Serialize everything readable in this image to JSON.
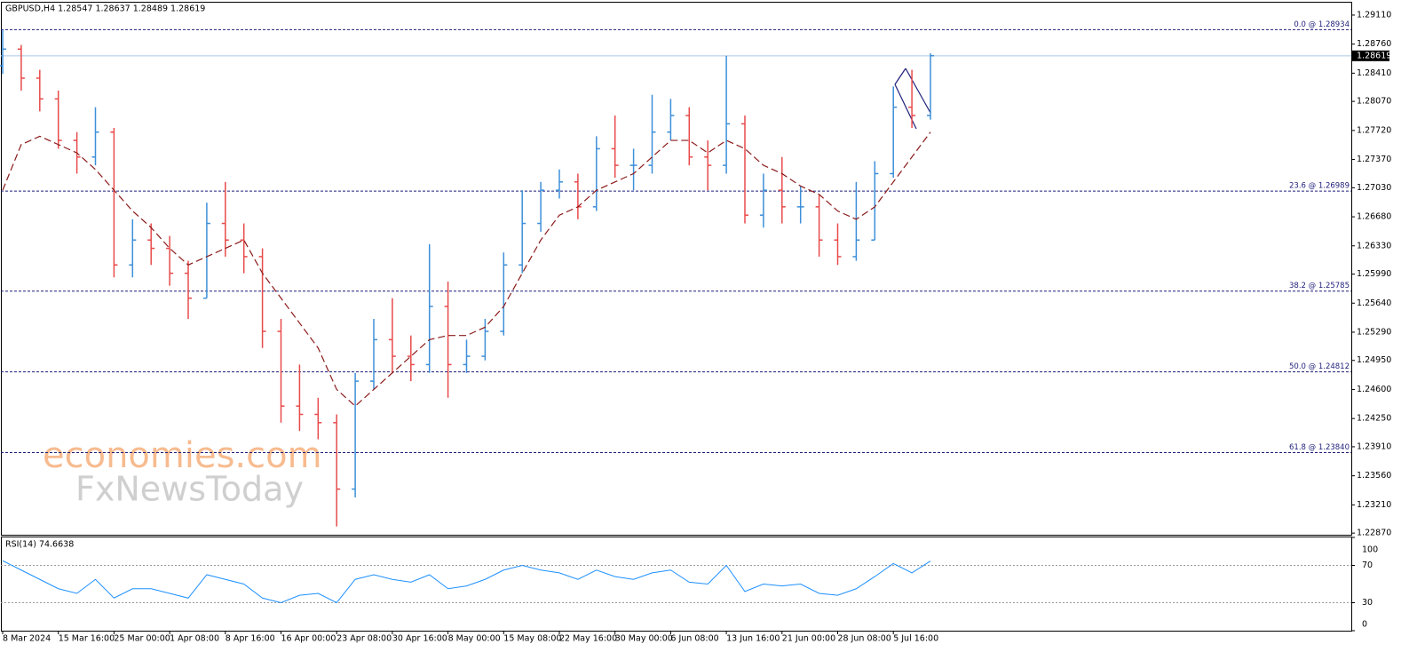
{
  "chart_data": [
    {
      "type": "ohlc",
      "title": "GBPUSD,H4  1.28547 1.28637 1.28489 1.28619",
      "categories": [
        "8 Mar 2024",
        null,
        null,
        "15 Mar 16:00",
        null,
        null,
        "25 Mar 00:00",
        null,
        null,
        "1 Apr 08:00",
        null,
        null,
        "8 Apr 16:00",
        null,
        null,
        "16 Apr 00:00",
        null,
        null,
        "23 Apr 08:00",
        null,
        null,
        "30 Apr 16:00",
        null,
        null,
        "8 May 00:00",
        null,
        null,
        "15 May 08:00",
        null,
        null,
        "22 May 16:00",
        null,
        null,
        "30 May 00:00",
        null,
        null,
        "6 Jun 08:00",
        null,
        null,
        "13 Jun 16:00",
        null,
        null,
        "21 Jun 00:00",
        null,
        null,
        "28 Jun 08:00",
        null,
        null,
        "5 Jul 16:00",
        null,
        null
      ],
      "open": [
        1.285,
        1.287,
        1.2835,
        1.281,
        1.276,
        1.274,
        1.277,
        1.261,
        1.264,
        1.263,
        1.26,
        1.257,
        1.266,
        1.264,
        1.262,
        1.253,
        1.244,
        1.243,
        1.242,
        1.234,
        1.247,
        1.252,
        1.25,
        1.249,
        1.256,
        1.249,
        1.25,
        1.253,
        1.261,
        1.266,
        1.27,
        1.271,
        1.268,
        1.275,
        1.273,
        1.273,
        1.277,
        1.279,
        1.274,
        1.273,
        1.278,
        1.267,
        1.27,
        1.268,
        1.268,
        1.264,
        1.262,
        1.264,
        1.272,
        1.28,
        1.279
      ],
      "high": [
        1.2893,
        1.2875,
        1.2845,
        1.282,
        1.277,
        1.28,
        1.2775,
        1.2665,
        1.266,
        1.2645,
        1.2615,
        1.2685,
        1.271,
        1.266,
        1.263,
        1.2545,
        1.249,
        1.245,
        1.243,
        1.248,
        1.2545,
        1.257,
        1.2525,
        1.2635,
        1.259,
        1.252,
        1.2545,
        1.2625,
        1.27,
        1.271,
        1.2725,
        1.272,
        1.2765,
        1.279,
        1.275,
        1.2815,
        1.281,
        1.28,
        1.276,
        1.2862,
        1.279,
        1.272,
        1.274,
        1.2705,
        1.2695,
        1.266,
        1.271,
        1.2735,
        1.2825,
        1.2845,
        1.2865
      ],
      "low": [
        1.284,
        1.282,
        1.2795,
        1.275,
        1.272,
        1.273,
        1.2595,
        1.2595,
        1.261,
        1.2585,
        1.2545,
        1.257,
        1.262,
        1.26,
        1.251,
        1.242,
        1.241,
        1.24,
        1.2295,
        1.233,
        1.246,
        1.248,
        1.247,
        1.248,
        1.245,
        1.248,
        1.2495,
        1.2525,
        1.26,
        1.265,
        1.269,
        1.2665,
        1.2675,
        1.2715,
        1.27,
        1.272,
        1.276,
        1.273,
        1.27,
        1.272,
        1.266,
        1.2655,
        1.266,
        1.266,
        1.262,
        1.261,
        1.2615,
        1.264,
        1.2715,
        1.2775,
        1.2785
      ],
      "close": [
        1.287,
        1.2835,
        1.281,
        1.276,
        1.274,
        1.277,
        1.261,
        1.264,
        1.263,
        1.26,
        1.257,
        1.266,
        1.264,
        1.262,
        1.253,
        1.244,
        1.243,
        1.242,
        1.234,
        1.247,
        1.252,
        1.25,
        1.249,
        1.256,
        1.249,
        1.25,
        1.253,
        1.261,
        1.266,
        1.27,
        1.271,
        1.268,
        1.275,
        1.273,
        1.273,
        1.277,
        1.279,
        1.274,
        1.273,
        1.278,
        1.267,
        1.27,
        1.268,
        1.268,
        1.264,
        1.262,
        1.264,
        1.272,
        1.28,
        1.279,
        1.2862
      ],
      "up_color": "#3d8fd8",
      "down_color": "#e84a4a",
      "moving_average": {
        "color": "#8b1a1a",
        "values": [
          1.27,
          1.2755,
          1.2765,
          1.2755,
          1.2745,
          1.2725,
          1.27,
          1.2675,
          1.2655,
          1.263,
          1.261,
          1.262,
          1.263,
          1.264,
          1.26,
          1.257,
          1.254,
          1.251,
          1.246,
          1.244,
          1.246,
          1.248,
          1.25,
          1.252,
          1.2525,
          1.2525,
          1.2535,
          1.256,
          1.26,
          1.264,
          1.267,
          1.268,
          1.27,
          1.271,
          1.272,
          1.274,
          1.276,
          1.276,
          1.2745,
          1.276,
          1.275,
          1.273,
          1.272,
          1.2705,
          1.2695,
          1.2675,
          1.2665,
          1.268,
          1.271,
          1.274,
          1.277
        ]
      },
      "ylim": [
        1.2285,
        1.2927
      ],
      "yticks": [
        {
          "value": 1.2911,
          "label": "1.29110"
        },
        {
          "value": 1.2876,
          "label": "1.28760"
        },
        {
          "value": 1.2841,
          "label": "1.28410"
        },
        {
          "value": 1.2807,
          "label": "1.28070"
        },
        {
          "value": 1.2772,
          "label": "1.27720"
        },
        {
          "value": 1.2737,
          "label": "1.27370"
        },
        {
          "value": 1.2703,
          "label": "1.27030"
        },
        {
          "value": 1.2668,
          "label": "1.26680"
        },
        {
          "value": 1.2633,
          "label": "1.26330"
        },
        {
          "value": 1.2599,
          "label": "1.25990"
        },
        {
          "value": 1.2564,
          "label": "1.25640"
        },
        {
          "value": 1.2529,
          "label": "1.25290"
        },
        {
          "value": 1.2495,
          "label": "1.24950"
        },
        {
          "value": 1.246,
          "label": "1.24600"
        },
        {
          "value": 1.2425,
          "label": "1.24250"
        },
        {
          "value": 1.2391,
          "label": "1.23910"
        },
        {
          "value": 1.2356,
          "label": "1.23560"
        },
        {
          "value": 1.2321,
          "label": "1.23210"
        },
        {
          "value": 1.2287,
          "label": "1.22870"
        }
      ],
      "fib_color": "#1f1f7a",
      "fib_levels": [
        {
          "value": 1.28934,
          "label": "0.0 @ 1.28934"
        },
        {
          "value": 1.26989,
          "label": "23.6 @ 1.26989"
        },
        {
          "value": 1.25785,
          "label": "38.2 @ 1.25785"
        },
        {
          "value": 1.24812,
          "label": "50.0 @ 1.24812"
        },
        {
          "value": 1.2384,
          "label": "61.8 @ 1.23840"
        }
      ],
      "last_price": 1.28619,
      "watermark": [
        "economies.com",
        "FxNewsToday"
      ]
    },
    {
      "type": "line",
      "title": "RSI(14) 74.6638",
      "color": "#1e90ff",
      "values": [
        75,
        65,
        55,
        45,
        40,
        55,
        35,
        45,
        45,
        40,
        35,
        60,
        55,
        50,
        35,
        30,
        38,
        40,
        30,
        55,
        60,
        55,
        52,
        60,
        45,
        48,
        55,
        65,
        70,
        65,
        62,
        55,
        65,
        58,
        55,
        62,
        65,
        52,
        50,
        70,
        42,
        50,
        48,
        50,
        40,
        38,
        45,
        58,
        72,
        62,
        74.6638
      ],
      "ylim": [
        0,
        100
      ],
      "yticks": [
        100,
        70,
        30,
        0
      ],
      "levels": [
        70,
        30
      ]
    }
  ]
}
